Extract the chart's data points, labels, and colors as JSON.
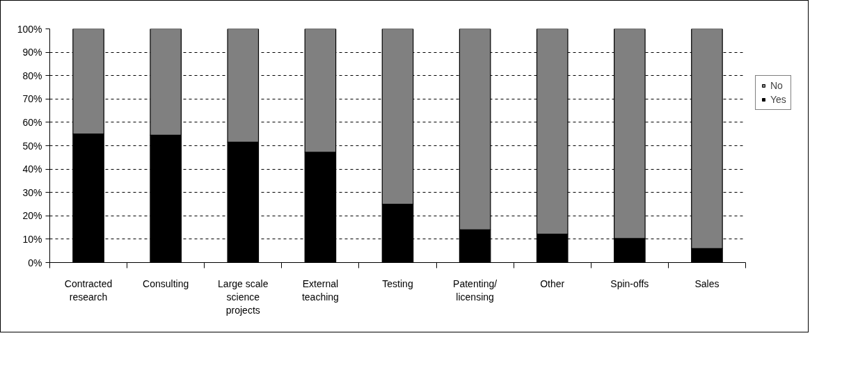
{
  "chart_data": {
    "type": "bar",
    "stacked": true,
    "categories": [
      "Contracted research",
      "Consulting",
      "Large scale science projects",
      "External teaching",
      "Testing",
      "Patenting/licensing",
      "Other",
      "Spin-offs",
      "Sales"
    ],
    "series": [
      {
        "name": "Yes",
        "color": "#000000",
        "values": [
          55,
          54.5,
          51.5,
          47.2,
          25,
          14,
          12.2,
          10.3,
          6
        ]
      },
      {
        "name": "No",
        "color": "#808080",
        "values": [
          45,
          45.5,
          48.5,
          52.8,
          75,
          86,
          87.8,
          89.7,
          94
        ]
      }
    ],
    "ylim": [
      0,
      100
    ],
    "yticks": [
      {
        "value": 0,
        "label": "0%"
      },
      {
        "value": 10,
        "label": "10%"
      },
      {
        "value": 20,
        "label": "20%"
      },
      {
        "value": 30,
        "label": "30%"
      },
      {
        "value": 40,
        "label": "40%"
      },
      {
        "value": 50,
        "label": "50%"
      },
      {
        "value": 60,
        "label": "60%"
      },
      {
        "value": 70,
        "label": "70%"
      },
      {
        "value": 80,
        "label": "80%"
      },
      {
        "value": 90,
        "label": "90%"
      },
      {
        "value": 100,
        "label": "100%"
      }
    ],
    "grid": "y",
    "legend": "right"
  }
}
